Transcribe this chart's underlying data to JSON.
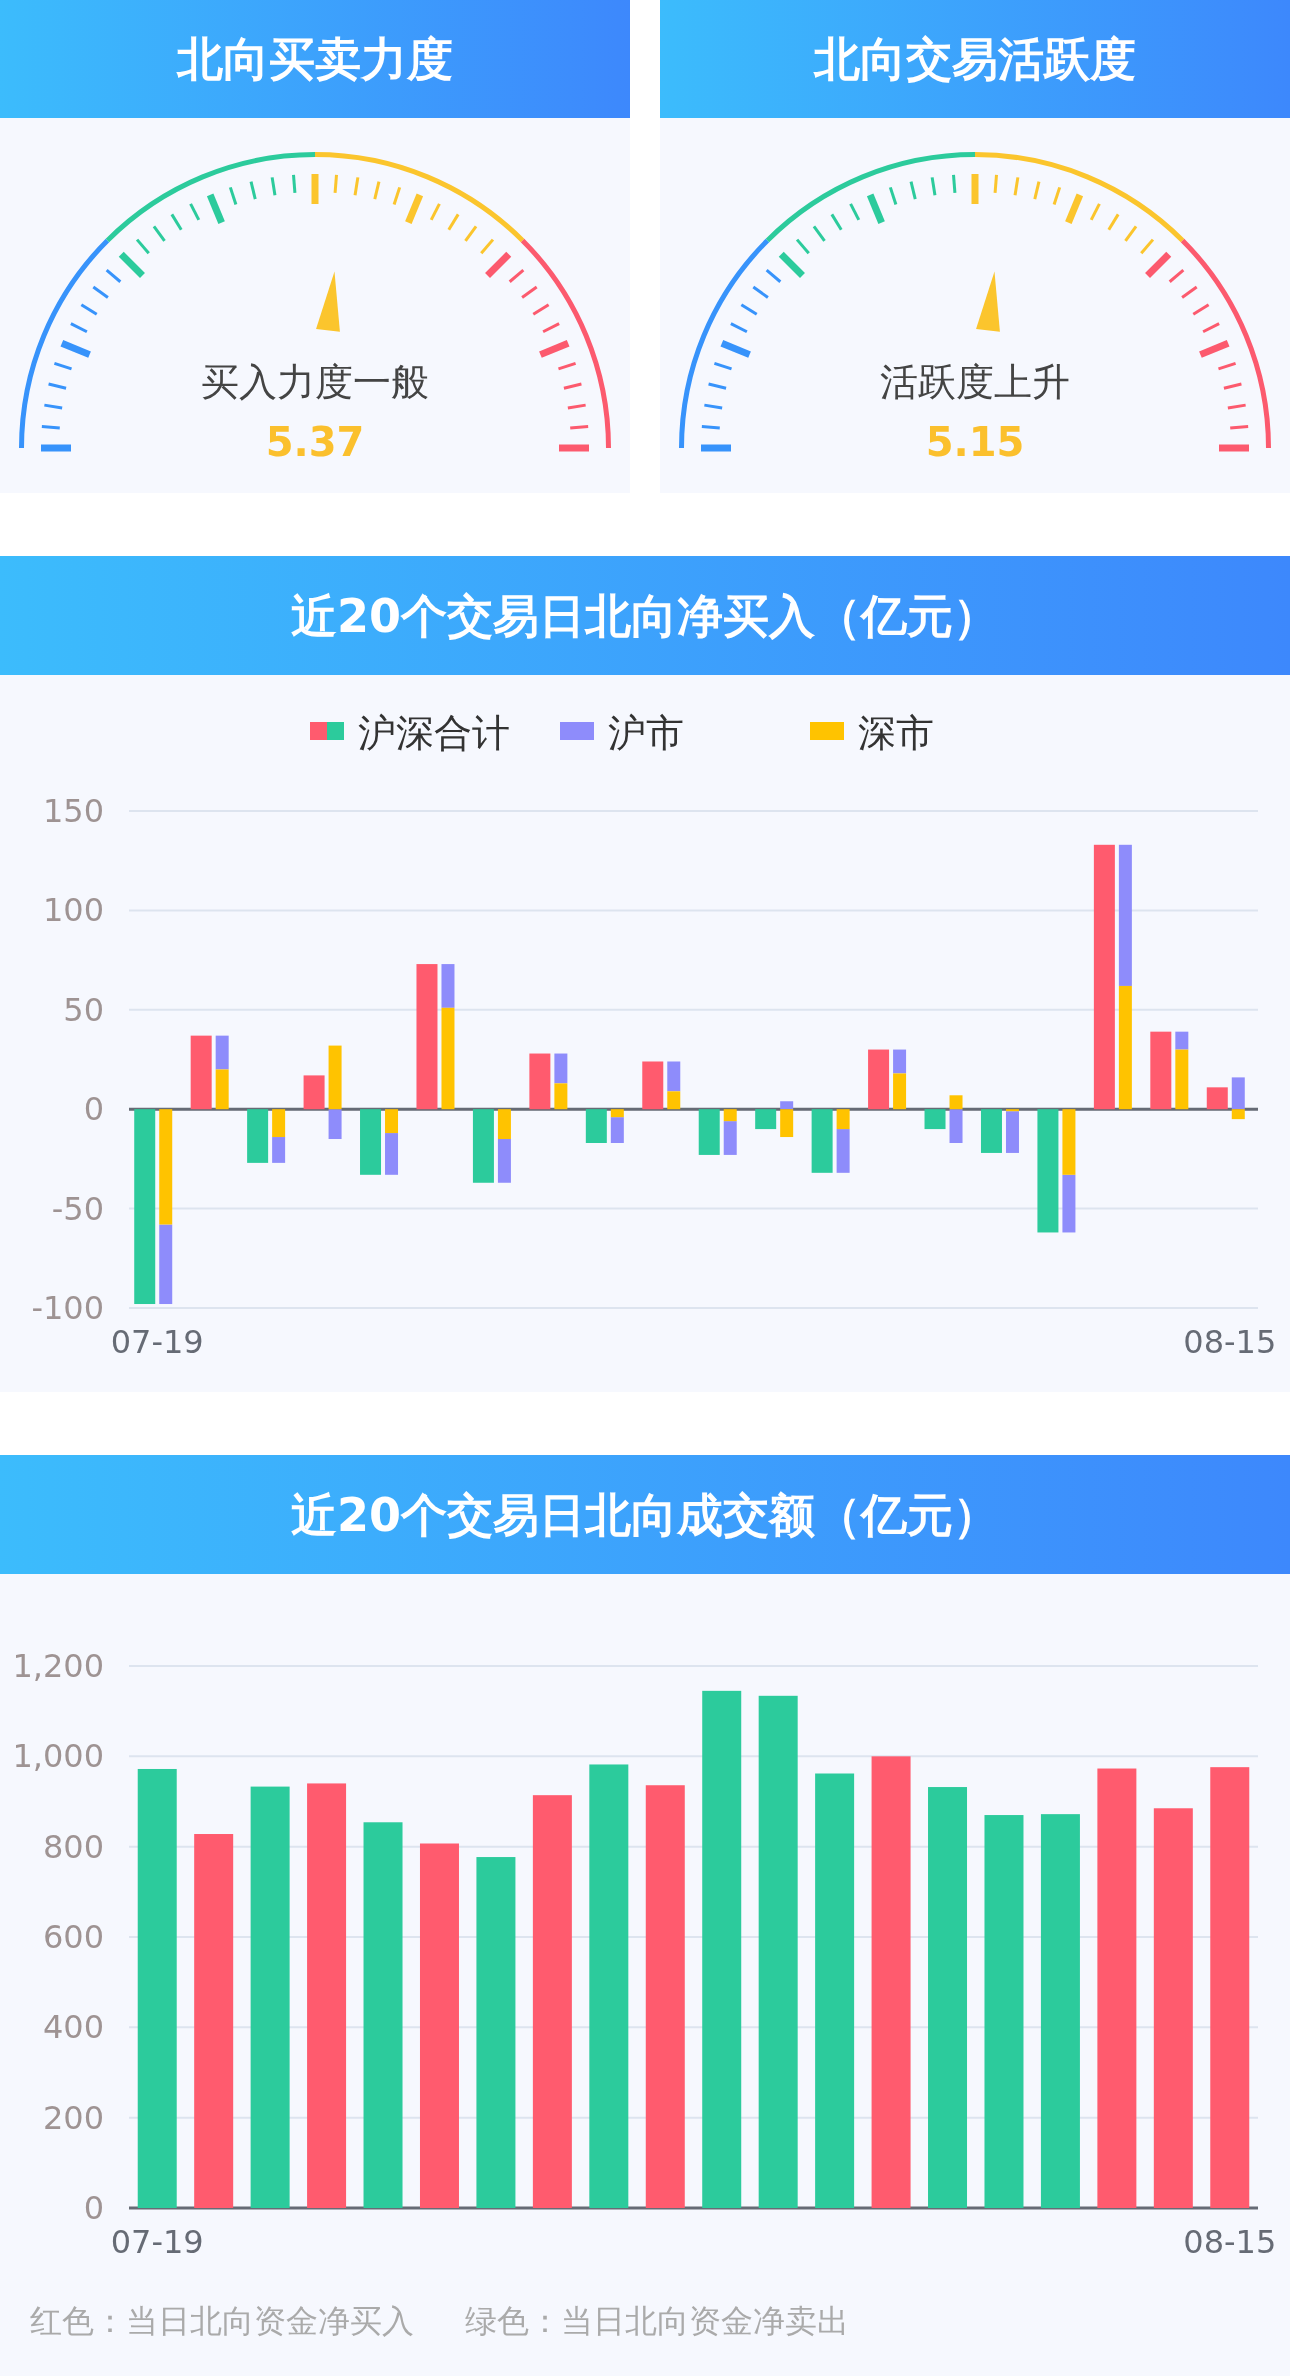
{
  "chart_data": [
    {
      "type": "other",
      "title": "北向买卖力度",
      "annotations": [
        "买入力度一般",
        "5.37"
      ]
    },
    {
      "type": "other",
      "title": "北向交易活跃度",
      "annotations": [
        "活跃度上升",
        "5.15"
      ]
    },
    {
      "type": "bar",
      "title": "近20个交易日北向净买入（亿元）",
      "categories": [
        "07-19",
        null,
        null,
        null,
        null,
        null,
        null,
        null,
        null,
        null,
        null,
        null,
        null,
        null,
        null,
        null,
        null,
        null,
        null,
        "08-15"
      ],
      "series": [
        {
          "name": "沪深合计",
          "colors": [
            "#2ccb9c",
            "#ff5b6e",
            "#2ccb9c",
            "#ff5b6e",
            "#2ccb9c",
            "#ff5b6e",
            "#2ccb9c",
            "#ff5b6e",
            "#2ccb9c",
            "#ff5b6e",
            "#2ccb9c",
            "#2ccb9c",
            "#2ccb9c",
            "#ff5b6e",
            "#2ccb9c",
            "#2ccb9c",
            "#2ccb9c",
            "#ff5b6e",
            "#ff5b6e",
            "#ff5b6e"
          ],
          "values": [
            -98,
            37,
            -27,
            17,
            -33,
            73,
            -37,
            28,
            -17,
            24,
            -23,
            -10,
            -32,
            30,
            -10,
            -22,
            -62,
            133,
            39,
            11
          ]
        },
        {
          "name": "沪市",
          "color": "#8e8cfb",
          "values": [
            -40,
            17,
            -13,
            -15,
            -21,
            22,
            -22,
            15,
            -13,
            15,
            -17,
            4,
            -22,
            12,
            -17,
            -21,
            -29,
            71,
            9,
            16
          ],
          "base": [
            -58,
            20,
            -14,
            0,
            -12,
            51,
            -15,
            13,
            -4,
            9,
            -6,
            0,
            -10,
            18,
            0,
            -1,
            -33,
            62,
            30,
            0
          ]
        },
        {
          "name": "深市",
          "color": "#ffc300",
          "values": [
            -58,
            20,
            -14,
            32,
            -12,
            51,
            -15,
            13,
            -4,
            9,
            -6,
            -14,
            -10,
            18,
            7,
            -1,
            -33,
            62,
            30,
            -5
          ]
        }
      ],
      "ylim": [
        -100,
        150
      ],
      "yticks": [
        150,
        100,
        50,
        0,
        -50,
        -100
      ],
      "grid": "y",
      "legend": "top"
    },
    {
      "type": "bar",
      "title": "近20个交易日北向成交额（亿元）",
      "categories": [
        "07-19",
        null,
        null,
        null,
        null,
        null,
        null,
        null,
        null,
        null,
        null,
        null,
        null,
        null,
        null,
        null,
        null,
        null,
        null,
        "08-15"
      ],
      "series": [
        {
          "colors": [
            "#2ccb9c",
            "#ff5b6e",
            "#2ccb9c",
            "#ff5b6e",
            "#2ccb9c",
            "#ff5b6e",
            "#2ccb9c",
            "#ff5b6e",
            "#2ccb9c",
            "#ff5b6e",
            "#2ccb9c",
            "#2ccb9c",
            "#2ccb9c",
            "#ff5b6e",
            "#2ccb9c",
            "#2ccb9c",
            "#2ccb9c",
            "#ff5b6e",
            "#ff5b6e",
            "#ff5b6e"
          ],
          "values": [
            972,
            828,
            933,
            940,
            854,
            807,
            777,
            914,
            982,
            936,
            1145,
            1134,
            962,
            1000,
            932,
            870,
            872,
            973,
            885,
            976
          ]
        }
      ],
      "ylim": [
        0,
        1200
      ],
      "yticks": [
        {
          "value": 1200,
          "label": "1,200"
        },
        {
          "value": 1000,
          "label": "1,000"
        },
        800,
        600,
        400,
        200,
        0
      ],
      "grid": "y",
      "annotations": [
        "红色：当日北向资金净买入     绿色：当日北向资金净卖出"
      ]
    }
  ]
}
